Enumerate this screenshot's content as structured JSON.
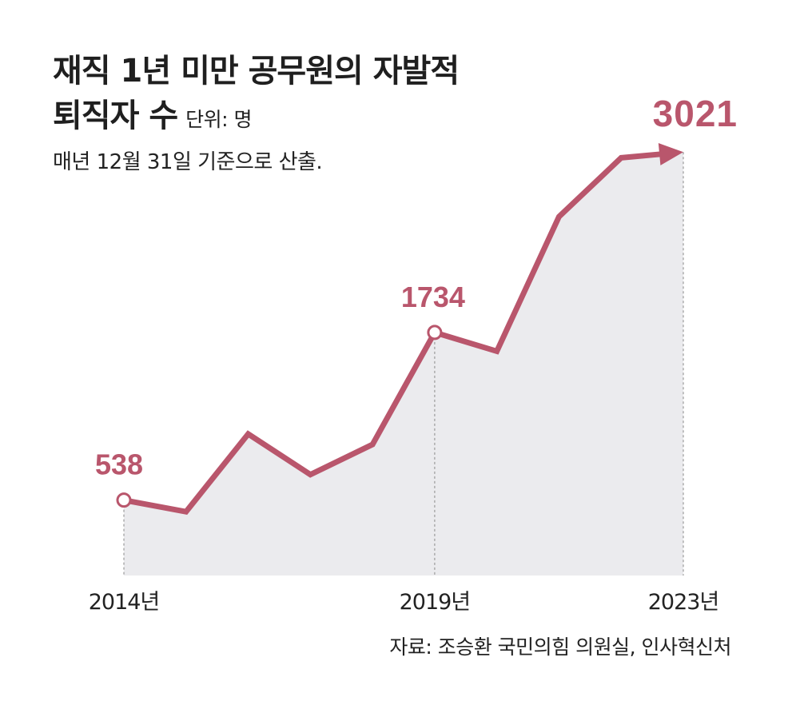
{
  "header": {
    "title_line1": "재직 1년 미만 공무원의 자발적",
    "title_line2": "퇴직자 수",
    "unit": "단위: 명",
    "note": "매년 12월 31일 기준으로 산출."
  },
  "source": "자료: 조승환 국민의힘 의원실, 인사혁신처",
  "colors": {
    "line": "#b9566c",
    "area": "#ebebee",
    "guide": "#9a9a9a",
    "text": "#222222"
  },
  "chart_data": {
    "type": "line",
    "x": [
      2014,
      2015,
      2016,
      2017,
      2018,
      2019,
      2020,
      2021,
      2022,
      2023
    ],
    "values": [
      538,
      455,
      1010,
      720,
      935,
      1734,
      1600,
      2560,
      2980,
      3021
    ],
    "ylim": [
      0,
      3450
    ],
    "value_labels": [
      {
        "x": 2014,
        "text": "538"
      },
      {
        "x": 2019,
        "text": "1734"
      },
      {
        "x": 2023,
        "text": "3021"
      }
    ],
    "tick_labels": [
      {
        "x": 2014,
        "text": "2014년"
      },
      {
        "x": 2019,
        "text": "2019년"
      },
      {
        "x": 2023,
        "text": "2023년"
      }
    ],
    "markers": [
      2014,
      2019
    ],
    "arrow_end": true
  }
}
